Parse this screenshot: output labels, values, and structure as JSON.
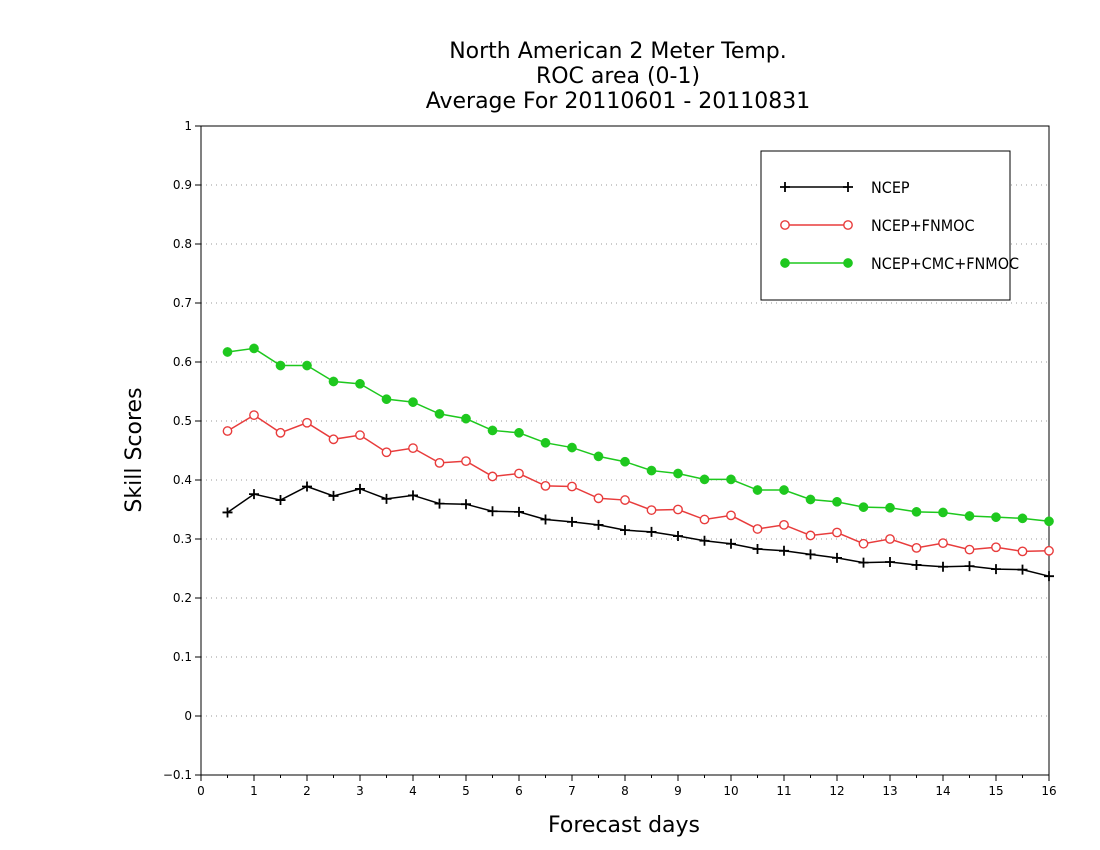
{
  "chart_data": {
    "type": "line",
    "title_lines": [
      "North American 2 Meter Temp.",
      "ROC area (0-1)",
      "Average For 20110601 - 20110831"
    ],
    "xlabel": "Forecast days",
    "ylabel": "Skill Scores",
    "xlim": [
      0,
      16
    ],
    "ylim": [
      -0.1,
      1
    ],
    "xticks": [
      "0",
      "1",
      "2",
      "3",
      "4",
      "5",
      "6",
      "7",
      "8",
      "9",
      "10",
      "11",
      "12",
      "13",
      "14",
      "15",
      "16"
    ],
    "yticks": [
      "−0.1",
      "0",
      "0.1",
      "0.2",
      "0.3",
      "0.4",
      "0.5",
      "0.6",
      "0.7",
      "0.8",
      "0.9",
      "1"
    ],
    "grid": "horizontal dotted",
    "legend_position": "top-right",
    "x": [
      0.5,
      1,
      1.5,
      2,
      2.5,
      3,
      3.5,
      4,
      4.5,
      5,
      5.5,
      6,
      6.5,
      7,
      7.5,
      8,
      8.5,
      9,
      9.5,
      10,
      10.5,
      11,
      11.5,
      12,
      12.5,
      13,
      13.5,
      14,
      14.5,
      15,
      15.5,
      16
    ],
    "series": [
      {
        "name": "NCEP",
        "color": "#000000",
        "marker": "plus",
        "values": [
          0.345,
          0.376,
          0.366,
          0.389,
          0.373,
          0.385,
          0.368,
          0.374,
          0.36,
          0.359,
          0.347,
          0.346,
          0.333,
          0.329,
          0.324,
          0.315,
          0.312,
          0.305,
          0.297,
          0.292,
          0.283,
          0.28,
          0.274,
          0.268,
          0.26,
          0.261,
          0.256,
          0.253,
          0.254,
          0.249,
          0.248,
          0.237
        ]
      },
      {
        "name": "NCEP+FNMOC",
        "color": "#e83c3c",
        "marker": "open-circle",
        "values": [
          0.483,
          0.51,
          0.48,
          0.497,
          0.469,
          0.476,
          0.447,
          0.454,
          0.429,
          0.432,
          0.406,
          0.411,
          0.39,
          0.389,
          0.369,
          0.366,
          0.349,
          0.35,
          0.333,
          0.34,
          0.317,
          0.324,
          0.306,
          0.311,
          0.292,
          0.3,
          0.285,
          0.293,
          0.282,
          0.286,
          0.279,
          0.28
        ]
      },
      {
        "name": "NCEP+CMC+FNMOC",
        "color": "#1ec81e",
        "marker": "filled-circle",
        "values": [
          0.617,
          0.623,
          0.594,
          0.594,
          0.567,
          0.563,
          0.537,
          0.532,
          0.512,
          0.504,
          0.484,
          0.48,
          0.463,
          0.455,
          0.44,
          0.431,
          0.416,
          0.411,
          0.401,
          0.401,
          0.383,
          0.383,
          0.367,
          0.363,
          0.354,
          0.353,
          0.346,
          0.345,
          0.339,
          0.337,
          0.335,
          0.33
        ]
      }
    ]
  }
}
